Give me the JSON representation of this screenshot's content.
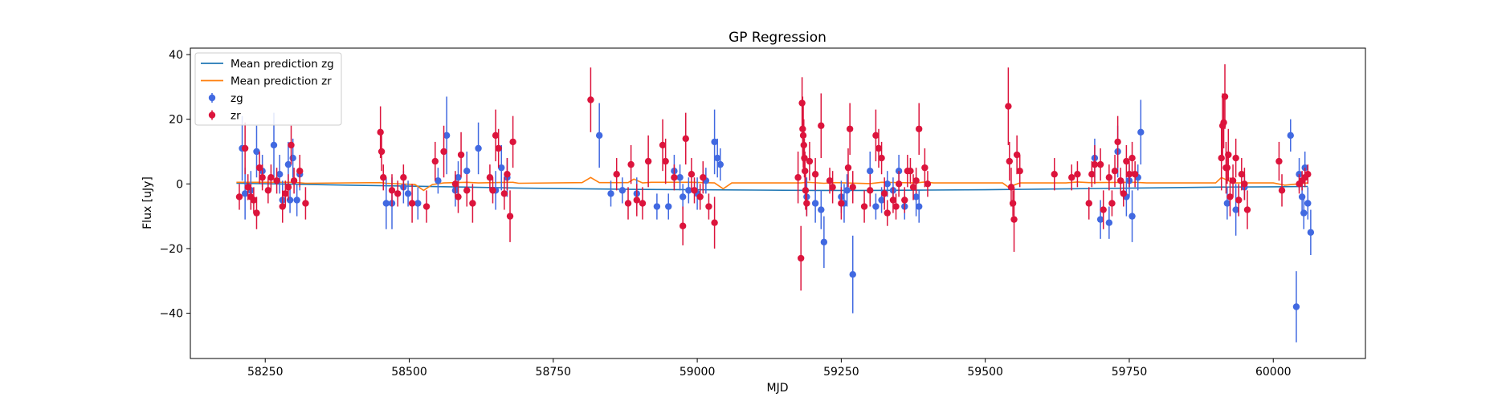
{
  "chart_data": {
    "type": "scatter",
    "title": "GP Regression",
    "xlabel": "MJD",
    "ylabel": "Flux [uJy]",
    "xlim": [
      58120,
      60160
    ],
    "ylim": [
      -54,
      42
    ],
    "xticks": [
      58250,
      58500,
      58750,
      59000,
      59250,
      59500,
      59750,
      60000
    ],
    "yticks": [
      -40,
      -20,
      0,
      20,
      40
    ],
    "grid": false,
    "legend_position": "upper-left",
    "legend": [
      {
        "label": "Mean prediction zg",
        "kind": "line",
        "color": "#1f77b4"
      },
      {
        "label": "Mean prediction zr",
        "kind": "line",
        "color": "#ff7f0e"
      },
      {
        "label": "zg",
        "kind": "errorbar",
        "color": "#4169e1"
      },
      {
        "label": "zr",
        "kind": "errorbar",
        "color": "#dc143c"
      }
    ],
    "lines": [
      {
        "name": "Mean prediction zg",
        "color": "#1f77b4",
        "x": [
          58200,
          58300,
          58400,
          58500,
          58600,
          58700,
          58800,
          58900,
          59000,
          59100,
          59200,
          59300,
          59400,
          59500,
          59600,
          59700,
          59800,
          59900,
          60000,
          60060
        ],
        "y": [
          0.2,
          -0.1,
          -0.4,
          -0.7,
          -1.0,
          -1.3,
          -1.5,
          -1.7,
          -1.8,
          -1.9,
          -2.0,
          -2.0,
          -1.9,
          -1.8,
          -1.6,
          -1.4,
          -1.2,
          -1.0,
          -0.9,
          -0.8
        ]
      },
      {
        "name": "Mean prediction zr",
        "color": "#ff7f0e",
        "x": [
          58200,
          58300,
          58320,
          58450,
          58460,
          58510,
          58525,
          58540,
          58560,
          58600,
          58620,
          58680,
          58690,
          58800,
          58815,
          58830,
          58880,
          58890,
          58905,
          58920,
          58990,
          59030,
          59045,
          59060,
          59180,
          59190,
          59220,
          59240,
          59300,
          59320,
          59380,
          59395,
          59410,
          59530,
          59540,
          59560,
          59640,
          59660,
          59680,
          59760,
          59780,
          59900,
          59910,
          59930,
          60000,
          60020,
          60060
        ],
        "y": [
          0.5,
          0.5,
          0.2,
          0.4,
          0.2,
          -0.2,
          -2.0,
          -0.2,
          0.3,
          0.5,
          0.3,
          0.5,
          0.2,
          0.4,
          2.0,
          0.4,
          0.4,
          1.5,
          0.3,
          0.5,
          0.5,
          0.3,
          -1.5,
          0.3,
          0.3,
          0.5,
          0.2,
          0.4,
          0.1,
          0.5,
          0.3,
          0.6,
          0.3,
          0.3,
          -1.0,
          0.3,
          0.3,
          0.6,
          0.4,
          0.5,
          0.3,
          0.3,
          2.0,
          0.3,
          0.3,
          -0.4,
          0.3
        ]
      }
    ],
    "series": [
      {
        "name": "zg",
        "color": "#4169e1",
        "points": [
          [
            58210,
            11,
            10
          ],
          [
            58215,
            -3,
            8
          ],
          [
            58225,
            -2,
            6
          ],
          [
            58235,
            10,
            8
          ],
          [
            58245,
            4,
            5
          ],
          [
            58265,
            12,
            10
          ],
          [
            58275,
            3,
            6
          ],
          [
            58280,
            -5,
            6
          ],
          [
            58290,
            6,
            7
          ],
          [
            58293,
            -5,
            4
          ],
          [
            58298,
            8,
            6
          ],
          [
            58305,
            -5,
            5
          ],
          [
            58310,
            3,
            5
          ],
          [
            58460,
            -6,
            8
          ],
          [
            58470,
            -6,
            8
          ],
          [
            58490,
            -1,
            5
          ],
          [
            58498,
            -3,
            4
          ],
          [
            58515,
            -6,
            5
          ],
          [
            58550,
            1,
            4
          ],
          [
            58565,
            15,
            12
          ],
          [
            58580,
            -2,
            5
          ],
          [
            58585,
            2,
            5
          ],
          [
            58600,
            4,
            6
          ],
          [
            58620,
            11,
            8
          ],
          [
            58650,
            -2,
            6
          ],
          [
            58660,
            5,
            7
          ],
          [
            58670,
            2,
            6
          ],
          [
            58830,
            15,
            10
          ],
          [
            58850,
            -3,
            4
          ],
          [
            58870,
            -2,
            4
          ],
          [
            58895,
            -3,
            5
          ],
          [
            58930,
            -7,
            4
          ],
          [
            58950,
            -7,
            4
          ],
          [
            58960,
            4,
            5
          ],
          [
            58970,
            2,
            4
          ],
          [
            58975,
            -4,
            4
          ],
          [
            58985,
            -2,
            4
          ],
          [
            59000,
            -3,
            5
          ],
          [
            59015,
            1,
            4
          ],
          [
            59030,
            13,
            10
          ],
          [
            59035,
            8,
            6
          ],
          [
            59040,
            6,
            5
          ],
          [
            59190,
            -4,
            6
          ],
          [
            59205,
            -6,
            6
          ],
          [
            59215,
            -8,
            6
          ],
          [
            59220,
            -18,
            8
          ],
          [
            59250,
            -4,
            5
          ],
          [
            59255,
            -6,
            6
          ],
          [
            59260,
            -2,
            5
          ],
          [
            59270,
            -28,
            12
          ],
          [
            59300,
            4,
            6
          ],
          [
            59310,
            -7,
            4
          ],
          [
            59320,
            -5,
            4
          ],
          [
            59330,
            0,
            4
          ],
          [
            59340,
            -2,
            4
          ],
          [
            59350,
            4,
            5
          ],
          [
            59360,
            -7,
            4
          ],
          [
            59380,
            -4,
            6
          ],
          [
            59385,
            -7,
            5
          ],
          [
            59690,
            8,
            6
          ],
          [
            59700,
            -11,
            6
          ],
          [
            59715,
            -12,
            5
          ],
          [
            59730,
            10,
            8
          ],
          [
            59745,
            -4,
            6
          ],
          [
            59750,
            1,
            5
          ],
          [
            59755,
            -10,
            8
          ],
          [
            59765,
            2,
            4
          ],
          [
            59770,
            16,
            10
          ],
          [
            59920,
            -6,
            5
          ],
          [
            59935,
            -8,
            8
          ],
          [
            59950,
            -1,
            4
          ],
          [
            60030,
            15,
            5
          ],
          [
            60040,
            -38,
            11
          ],
          [
            60045,
            3,
            5
          ],
          [
            60050,
            -4,
            5
          ],
          [
            60053,
            -9,
            5
          ],
          [
            60055,
            5,
            5
          ],
          [
            60060,
            -6,
            5
          ],
          [
            60065,
            -15,
            7
          ]
        ]
      },
      {
        "name": "zr",
        "color": "#dc143c",
        "points": [
          [
            58205,
            -4,
            4
          ],
          [
            58215,
            11,
            8
          ],
          [
            58220,
            -1,
            4
          ],
          [
            58225,
            -4,
            4
          ],
          [
            58230,
            -5,
            4
          ],
          [
            58235,
            -9,
            5
          ],
          [
            58240,
            5,
            5
          ],
          [
            58245,
            2,
            4
          ],
          [
            58255,
            -2,
            4
          ],
          [
            58260,
            2,
            4
          ],
          [
            58270,
            1,
            4
          ],
          [
            58280,
            -7,
            5
          ],
          [
            58285,
            -3,
            4
          ],
          [
            58290,
            -1,
            4
          ],
          [
            58295,
            12,
            6
          ],
          [
            58300,
            1,
            4
          ],
          [
            58310,
            4,
            5
          ],
          [
            58320,
            -6,
            5
          ],
          [
            58450,
            16,
            8
          ],
          [
            58452,
            10,
            6
          ],
          [
            58455,
            2,
            4
          ],
          [
            58470,
            -2,
            5
          ],
          [
            58480,
            -3,
            4
          ],
          [
            58490,
            2,
            4
          ],
          [
            58505,
            -6,
            6
          ],
          [
            58530,
            -7,
            5
          ],
          [
            58545,
            7,
            6
          ],
          [
            58560,
            10,
            8
          ],
          [
            58580,
            0,
            4
          ],
          [
            58585,
            -4,
            5
          ],
          [
            58590,
            9,
            7
          ],
          [
            58600,
            -2,
            5
          ],
          [
            58610,
            -6,
            6
          ],
          [
            58640,
            2,
            4
          ],
          [
            58645,
            -2,
            4
          ],
          [
            58650,
            15,
            8
          ],
          [
            58655,
            11,
            6
          ],
          [
            58665,
            -3,
            5
          ],
          [
            58670,
            3,
            5
          ],
          [
            58675,
            -10,
            8
          ],
          [
            58680,
            13,
            8
          ],
          [
            58815,
            26,
            10
          ],
          [
            58860,
            3,
            5
          ],
          [
            58880,
            -6,
            5
          ],
          [
            58885,
            6,
            6
          ],
          [
            58895,
            -5,
            5
          ],
          [
            58905,
            -6,
            5
          ],
          [
            58915,
            7,
            8
          ],
          [
            58940,
            12,
            8
          ],
          [
            58945,
            7,
            7
          ],
          [
            58960,
            2,
            4
          ],
          [
            58975,
            -13,
            6
          ],
          [
            58980,
            14,
            8
          ],
          [
            58990,
            3,
            5
          ],
          [
            58995,
            -2,
            4
          ],
          [
            59005,
            -4,
            4
          ],
          [
            59010,
            2,
            5
          ],
          [
            59020,
            -7,
            4
          ],
          [
            59030,
            -12,
            8
          ],
          [
            59175,
            2,
            8
          ],
          [
            59180,
            -23,
            10
          ],
          [
            59182,
            25,
            8
          ],
          [
            59183,
            17,
            10
          ],
          [
            59184,
            15,
            10
          ],
          [
            59185,
            12,
            8
          ],
          [
            59186,
            8,
            6
          ],
          [
            59187,
            4,
            6
          ],
          [
            59188,
            -2,
            6
          ],
          [
            59190,
            -6,
            4
          ],
          [
            59195,
            7,
            6
          ],
          [
            59205,
            3,
            5
          ],
          [
            59215,
            18,
            10
          ],
          [
            59230,
            1,
            4
          ],
          [
            59235,
            -1,
            5
          ],
          [
            59250,
            -6,
            5
          ],
          [
            59262,
            5,
            6
          ],
          [
            59265,
            17,
            8
          ],
          [
            59270,
            -1,
            5
          ],
          [
            59290,
            -7,
            5
          ],
          [
            59300,
            -2,
            5
          ],
          [
            59310,
            15,
            8
          ],
          [
            59315,
            11,
            6
          ],
          [
            59320,
            8,
            5
          ],
          [
            59325,
            -3,
            5
          ],
          [
            59330,
            -9,
            4
          ],
          [
            59340,
            -5,
            4
          ],
          [
            59345,
            -7,
            4
          ],
          [
            59350,
            0,
            4
          ],
          [
            59360,
            -5,
            4
          ],
          [
            59365,
            4,
            5
          ],
          [
            59370,
            4,
            4
          ],
          [
            59375,
            -1,
            4
          ],
          [
            59380,
            1,
            4
          ],
          [
            59385,
            17,
            8
          ],
          [
            59395,
            5,
            6
          ],
          [
            59400,
            0,
            4
          ],
          [
            59540,
            24,
            12
          ],
          [
            59542,
            7,
            6
          ],
          [
            59545,
            -1,
            6
          ],
          [
            59548,
            -6,
            4
          ],
          [
            59550,
            -11,
            10
          ],
          [
            59555,
            9,
            6
          ],
          [
            59560,
            4,
            5
          ],
          [
            59620,
            3,
            5
          ],
          [
            59650,
            2,
            4
          ],
          [
            59660,
            3,
            4
          ],
          [
            59680,
            -6,
            5
          ],
          [
            59685,
            3,
            4
          ],
          [
            59690,
            6,
            6
          ],
          [
            59700,
            6,
            5
          ],
          [
            59705,
            -8,
            6
          ],
          [
            59715,
            2,
            4
          ],
          [
            59720,
            -6,
            4
          ],
          [
            59725,
            4,
            5
          ],
          [
            59730,
            13,
            8
          ],
          [
            59735,
            1,
            4
          ],
          [
            59740,
            -3,
            4
          ],
          [
            59745,
            7,
            5
          ],
          [
            59750,
            3,
            4
          ],
          [
            59755,
            8,
            5
          ],
          [
            59760,
            3,
            4
          ],
          [
            59910,
            8,
            10
          ],
          [
            59912,
            18,
            10
          ],
          [
            59914,
            19,
            8
          ],
          [
            59916,
            27,
            10
          ],
          [
            59918,
            5,
            8
          ],
          [
            59920,
            5,
            5
          ],
          [
            59922,
            9,
            8
          ],
          [
            59925,
            -4,
            6
          ],
          [
            59930,
            1,
            5
          ],
          [
            59935,
            8,
            6
          ],
          [
            59940,
            -5,
            5
          ],
          [
            59945,
            3,
            5
          ],
          [
            59950,
            0,
            5
          ],
          [
            59955,
            -8,
            6
          ],
          [
            60010,
            7,
            6
          ],
          [
            60015,
            -2,
            5
          ],
          [
            60045,
            0,
            3
          ],
          [
            60050,
            1,
            3
          ],
          [
            60055,
            2,
            3
          ],
          [
            60060,
            3,
            3
          ]
        ]
      }
    ]
  }
}
